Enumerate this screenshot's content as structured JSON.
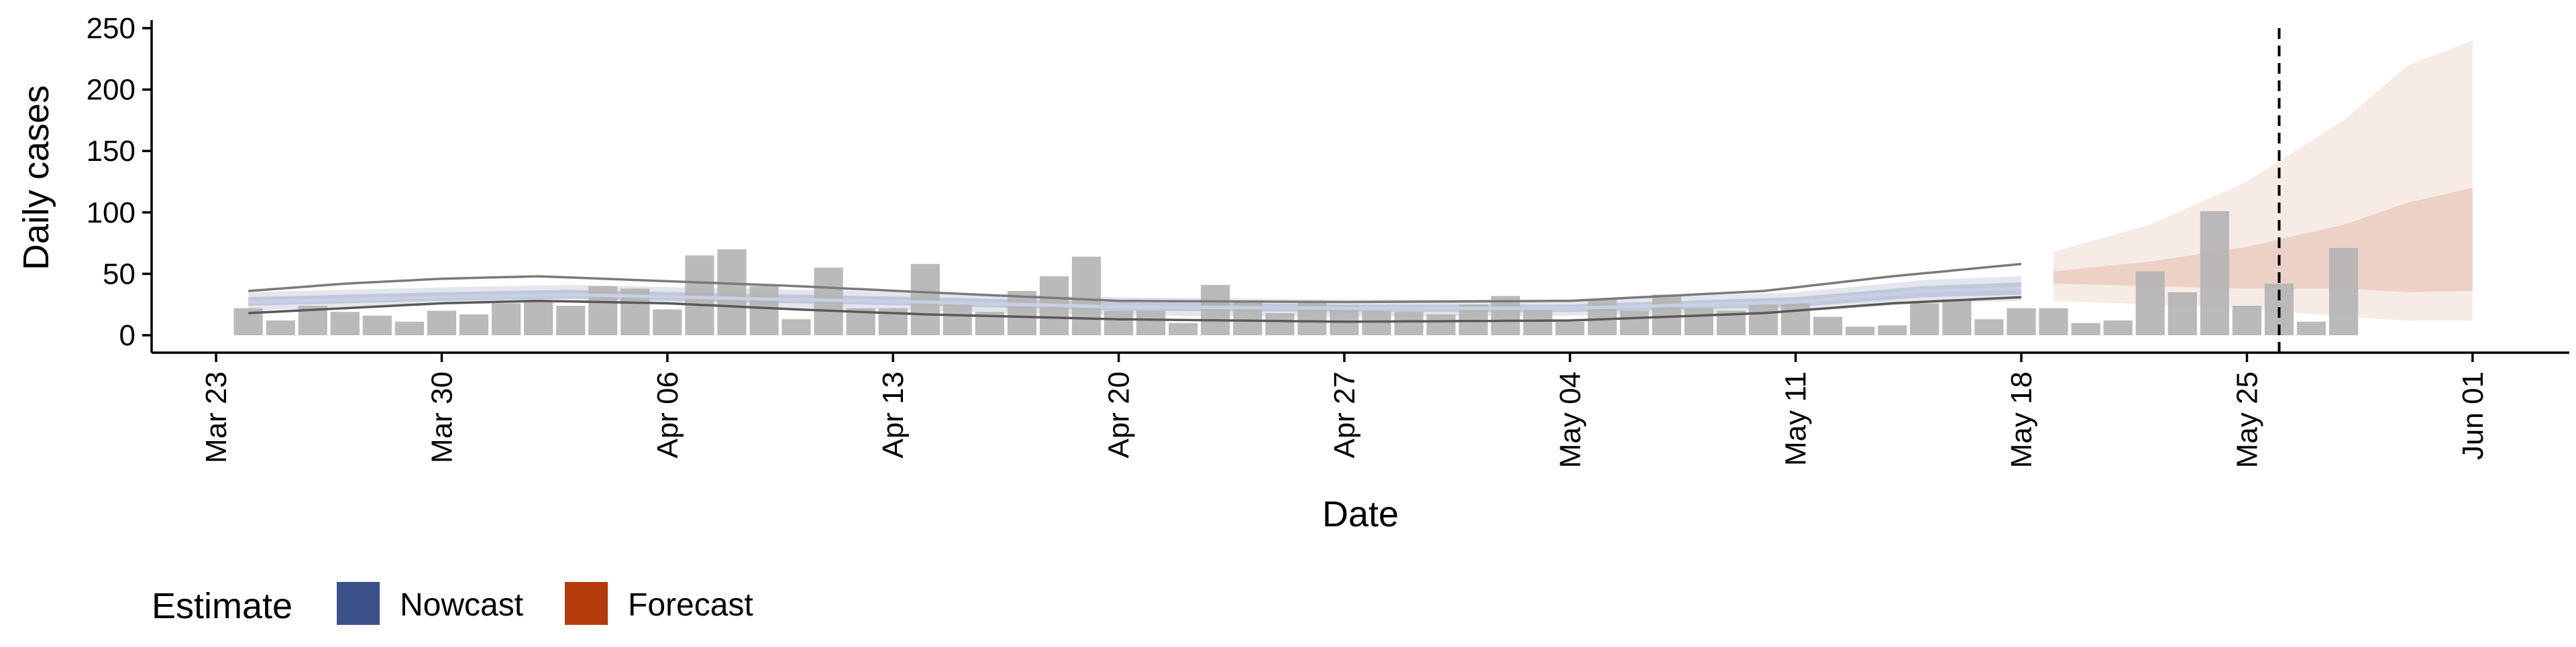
{
  "chart_data": {
    "type": "bar",
    "xlabel": "Date",
    "ylabel": "Daily cases",
    "ylim": [
      0,
      250
    ],
    "yticks": [
      0,
      50,
      100,
      150,
      200,
      250
    ],
    "xlim": [
      "2020-03-21",
      "2020-06-04"
    ],
    "xticks": [
      {
        "date": "2020-03-23",
        "label": "Mar 23"
      },
      {
        "date": "2020-03-30",
        "label": "Mar 30"
      },
      {
        "date": "2020-04-06",
        "label": "Apr 06"
      },
      {
        "date": "2020-04-13",
        "label": "Apr 13"
      },
      {
        "date": "2020-04-20",
        "label": "Apr 20"
      },
      {
        "date": "2020-04-27",
        "label": "Apr 27"
      },
      {
        "date": "2020-05-04",
        "label": "May 04"
      },
      {
        "date": "2020-05-11",
        "label": "May 11"
      },
      {
        "date": "2020-05-18",
        "label": "May 18"
      },
      {
        "date": "2020-05-25",
        "label": "May 25"
      },
      {
        "date": "2020-06-01",
        "label": "Jun 01"
      }
    ],
    "grid": false,
    "legend_position": "bottom-left",
    "reference_line_date": "2020-05-26",
    "colors": {
      "bars": "#b3b3b3",
      "nowcast": "#3b4f8a",
      "forecast": "#b33a0a",
      "reference_line": "#000000"
    },
    "observed": {
      "start": "2020-03-24",
      "values": [
        22,
        12,
        24,
        19,
        16,
        11,
        20,
        17,
        26,
        27,
        24,
        40,
        38,
        21,
        65,
        70,
        40,
        13,
        55,
        22,
        22,
        58,
        27,
        19,
        36,
        48,
        64,
        20,
        20,
        10,
        41,
        28,
        18,
        28,
        24,
        20,
        19,
        17,
        25,
        32,
        21,
        11,
        29,
        20,
        33,
        22,
        20,
        25,
        26,
        15,
        7,
        8,
        26,
        29,
        13,
        22,
        22,
        10,
        12,
        52,
        35,
        101,
        24,
        42,
        11,
        71
      ]
    },
    "legend": {
      "title": "Estimate",
      "items": [
        {
          "label": "Nowcast",
          "color": "#3b4f8a"
        },
        {
          "label": "Forecast",
          "color": "#b33a0a"
        }
      ]
    },
    "nowcast": {
      "start": "2020-03-24",
      "end": "2020-05-18",
      "median_knots": [
        [
          "2020-03-24",
          27
        ],
        [
          "2020-03-30",
          31
        ],
        [
          "2020-04-03",
          33
        ],
        [
          "2020-04-08",
          30
        ],
        [
          "2020-04-14",
          27
        ],
        [
          "2020-04-20",
          23
        ],
        [
          "2020-04-27",
          22
        ],
        [
          "2020-05-04",
          22
        ],
        [
          "2020-05-11",
          27
        ],
        [
          "2020-05-15",
          36
        ],
        [
          "2020-05-18",
          38
        ]
      ],
      "inner_lower_knots": [
        [
          "2020-03-24",
          24
        ],
        [
          "2020-03-30",
          28
        ],
        [
          "2020-04-03",
          30
        ],
        [
          "2020-04-08",
          27
        ],
        [
          "2020-04-14",
          24
        ],
        [
          "2020-04-20",
          20
        ],
        [
          "2020-04-27",
          19
        ],
        [
          "2020-05-04",
          19
        ],
        [
          "2020-05-11",
          23
        ],
        [
          "2020-05-15",
          31
        ],
        [
          "2020-05-18",
          33
        ]
      ],
      "inner_upper_knots": [
        [
          "2020-03-24",
          31
        ],
        [
          "2020-03-30",
          35
        ],
        [
          "2020-04-03",
          37
        ],
        [
          "2020-04-08",
          34
        ],
        [
          "2020-04-14",
          31
        ],
        [
          "2020-04-20",
          27
        ],
        [
          "2020-04-27",
          25
        ],
        [
          "2020-05-04",
          25
        ],
        [
          "2020-05-11",
          31
        ],
        [
          "2020-05-15",
          40
        ],
        [
          "2020-05-18",
          43
        ]
      ],
      "outer_lower_knots": [
        [
          "2020-03-24",
          20
        ],
        [
          "2020-03-30",
          25
        ],
        [
          "2020-04-03",
          27
        ],
        [
          "2020-04-08",
          23
        ],
        [
          "2020-04-14",
          20
        ],
        [
          "2020-04-20",
          16
        ],
        [
          "2020-04-27",
          15
        ],
        [
          "2020-05-04",
          16
        ],
        [
          "2020-05-11",
          19
        ],
        [
          "2020-05-15",
          26
        ],
        [
          "2020-05-18",
          28
        ]
      ],
      "outer_upper_knots": [
        [
          "2020-03-24",
          35
        ],
        [
          "2020-03-30",
          39
        ],
        [
          "2020-04-03",
          41
        ],
        [
          "2020-04-08",
          38
        ],
        [
          "2020-04-14",
          35
        ],
        [
          "2020-04-20",
          31
        ],
        [
          "2020-04-27",
          29
        ],
        [
          "2020-05-04",
          29
        ],
        [
          "2020-05-11",
          35
        ],
        [
          "2020-05-15",
          45
        ],
        [
          "2020-05-18",
          48
        ]
      ],
      "upper_line_knots": [
        [
          "2020-03-24",
          36
        ],
        [
          "2020-03-27",
          42
        ],
        [
          "2020-03-30",
          46
        ],
        [
          "2020-04-02",
          48
        ],
        [
          "2020-04-06",
          44
        ],
        [
          "2020-04-10",
          40
        ],
        [
          "2020-04-14",
          35
        ],
        [
          "2020-04-20",
          28
        ],
        [
          "2020-04-27",
          27
        ],
        [
          "2020-05-04",
          28
        ],
        [
          "2020-05-10",
          36
        ],
        [
          "2020-05-14",
          48
        ],
        [
          "2020-05-18",
          58
        ]
      ],
      "lower_line_knots": [
        [
          "2020-03-24",
          18
        ],
        [
          "2020-03-27",
          22
        ],
        [
          "2020-03-30",
          26
        ],
        [
          "2020-04-02",
          28
        ],
        [
          "2020-04-06",
          26
        ],
        [
          "2020-04-10",
          21
        ],
        [
          "2020-04-14",
          17
        ],
        [
          "2020-04-20",
          13
        ],
        [
          "2020-04-27",
          11
        ],
        [
          "2020-05-04",
          12
        ],
        [
          "2020-05-10",
          18
        ],
        [
          "2020-05-14",
          26
        ],
        [
          "2020-05-18",
          31
        ]
      ]
    },
    "forecast": {
      "start": "2020-05-19",
      "end": "2020-06-01",
      "inner_lower_knots": [
        [
          "2020-05-19",
          42
        ],
        [
          "2020-05-22",
          40
        ],
        [
          "2020-05-25",
          38
        ],
        [
          "2020-05-28",
          38
        ],
        [
          "2020-05-30",
          35
        ],
        [
          "2020-06-01",
          36
        ]
      ],
      "inner_upper_knots": [
        [
          "2020-05-19",
          52
        ],
        [
          "2020-05-22",
          60
        ],
        [
          "2020-05-25",
          72
        ],
        [
          "2020-05-28",
          90
        ],
        [
          "2020-05-30",
          108
        ],
        [
          "2020-06-01",
          120
        ]
      ],
      "outer_lower_knots": [
        [
          "2020-05-19",
          28
        ],
        [
          "2020-05-22",
          25
        ],
        [
          "2020-05-25",
          22
        ],
        [
          "2020-05-28",
          15
        ],
        [
          "2020-05-30",
          12
        ],
        [
          "2020-06-01",
          12
        ]
      ],
      "outer_upper_knots": [
        [
          "2020-05-19",
          68
        ],
        [
          "2020-05-22",
          90
        ],
        [
          "2020-05-25",
          125
        ],
        [
          "2020-05-28",
          175
        ],
        [
          "2020-05-30",
          220
        ],
        [
          "2020-06-01",
          240
        ]
      ]
    }
  }
}
